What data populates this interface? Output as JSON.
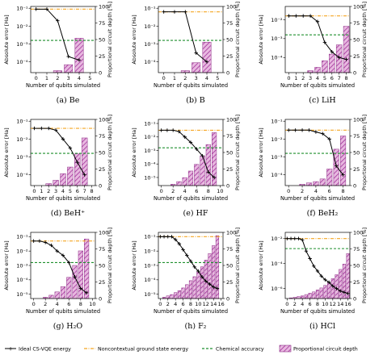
{
  "colors": {
    "ideal": "#000000",
    "noncontextual": "#f5a623",
    "chemical": "#1f8f2e",
    "bar_fill": "#e8b8e0",
    "bar_hatch": "#a0329a",
    "bar_edge": "#8e2f86"
  },
  "legend": {
    "ideal": "Ideal CS-VQE energy",
    "noncontextual": "Noncontextual ground state energy",
    "chemical": "Chemical accuracy",
    "bars": "Proportional circuit depth"
  },
  "chart_data": [
    {
      "type": "line+bar",
      "caption": "(a) Be",
      "xlabel": "Number of qubits simulated",
      "ylabel_left": "Absolute error [Ha]",
      "ylabel_right": "Proportional circuit depth [%]",
      "xlim": [
        -0.5,
        5.5
      ],
      "xticks": [
        0,
        1,
        2,
        3,
        4,
        5
      ],
      "ylog": true,
      "ylim_exp": [
        -4.6,
        -0.9
      ],
      "yticks_exp": [
        -1,
        -2,
        -3,
        -4
      ],
      "y2lim": [
        0,
        100
      ],
      "y2ticks": [
        0,
        25,
        50,
        75,
        100
      ],
      "noncontextual_exp": -1.05,
      "chemical_exp": -2.8,
      "ideal": {
        "x": [
          0,
          1,
          2,
          3,
          4
        ],
        "exp": [
          -1.05,
          -1.05,
          -1.7,
          -3.7,
          -3.9
        ]
      },
      "bars": {
        "x": [
          0,
          1,
          2,
          3,
          4
        ],
        "values": [
          0,
          0,
          3,
          12,
          52
        ]
      }
    },
    {
      "type": "line+bar",
      "caption": "(b) B",
      "xlabel": "Number of qubits simulated",
      "ylabel_left": "Absolute error [Ha]",
      "ylabel_right": "Proportional circuit depth [%]",
      "xlim": [
        -0.5,
        5.5
      ],
      "xticks": [
        0,
        1,
        2,
        3,
        4,
        5
      ],
      "ylog": true,
      "ylim_exp": [
        -4.6,
        -0.9
      ],
      "yticks_exp": [
        -1,
        -2,
        -3,
        -4
      ],
      "y2lim": [
        0,
        100
      ],
      "y2ticks": [
        0,
        25,
        50,
        75,
        100
      ],
      "noncontextual_exp": -1.2,
      "chemical_exp": -2.8,
      "ideal": {
        "x": [
          0,
          1,
          2,
          3,
          4
        ],
        "exp": [
          -1.2,
          -1.2,
          -1.2,
          -3.5,
          -4.0
        ]
      },
      "bars": {
        "x": [
          0,
          1,
          2,
          3,
          4
        ],
        "values": [
          0,
          0,
          3,
          15,
          46
        ]
      }
    },
    {
      "type": "line+bar",
      "caption": "(c) LiH",
      "xlabel": "Number of qubits simulated",
      "ylabel_left": "Absolute error [Ha]",
      "ylabel_right": "Proportional circuit depth [%]",
      "xlim": [
        -0.5,
        8.5
      ],
      "xticks": [
        0,
        1,
        2,
        3,
        4,
        5,
        6,
        7,
        8
      ],
      "ylog": true,
      "ylim_exp": [
        -4.8,
        -1.3
      ],
      "yticks_exp": [
        -2,
        -3,
        -4
      ],
      "y2lim": [
        0,
        100
      ],
      "y2ticks": [
        0,
        25,
        50,
        75,
        100
      ],
      "noncontextual_exp": -1.8,
      "chemical_exp": -2.8,
      "ideal": {
        "x": [
          0,
          1,
          2,
          3,
          4,
          5,
          6,
          7,
          8
        ],
        "exp": [
          -1.8,
          -1.8,
          -1.8,
          -1.8,
          -2.1,
          -3.2,
          -3.7,
          -4.0,
          -4.1
        ]
      },
      "bars": {
        "x": [
          0,
          1,
          2,
          3,
          4,
          5,
          6,
          7,
          8
        ],
        "values": [
          0,
          0,
          0,
          3,
          8,
          18,
          28,
          42,
          70
        ]
      }
    },
    {
      "type": "line+bar",
      "caption": "(d) BeH⁺",
      "xlabel": "Number of qubits simulated",
      "ylabel_left": "Absolute error [Ha]",
      "ylabel_right": "Proportional circuit depth [%]",
      "xlim": [
        -0.5,
        8.5
      ],
      "xticks": [
        0,
        1,
        2,
        3,
        4,
        5,
        6,
        7,
        8
      ],
      "ylog": true,
      "ylim_exp": [
        -4.6,
        -0.9
      ],
      "yticks_exp": [
        -1,
        -2,
        -3,
        -4
      ],
      "y2lim": [
        0,
        100
      ],
      "y2ticks": [
        0,
        25,
        50,
        75,
        100
      ],
      "noncontextual_exp": -1.4,
      "chemical_exp": -2.8,
      "ideal": {
        "x": [
          0,
          1,
          2,
          3,
          4,
          5,
          6,
          7
        ],
        "exp": [
          -1.4,
          -1.4,
          -1.4,
          -1.5,
          -2.0,
          -2.5,
          -3.3,
          -4.0
        ]
      },
      "bars": {
        "x": [
          0,
          1,
          2,
          3,
          4,
          5,
          6,
          7
        ],
        "values": [
          0,
          0,
          3,
          8,
          18,
          28,
          48,
          72
        ]
      }
    },
    {
      "type": "line+bar",
      "caption": "(e) HF",
      "xlabel": "Number of qubits simulated",
      "ylabel_left": "Absolute error [Ha]",
      "ylabel_right": "Proportional circuit depth [%]",
      "xlim": [
        -0.5,
        10.5
      ],
      "xticks": [
        0,
        2,
        4,
        6,
        8,
        10
      ],
      "ylog": true,
      "ylim_exp": [
        -5.6,
        -0.7
      ],
      "yticks_exp": [
        -1,
        -2,
        -3,
        -4,
        -5
      ],
      "y2lim": [
        0,
        100
      ],
      "y2ticks": [
        0,
        25,
        50,
        75,
        100
      ],
      "noncontextual_exp": -1.5,
      "chemical_exp": -2.8,
      "ideal": {
        "x": [
          0,
          1,
          2,
          3,
          4,
          5,
          6,
          7,
          8,
          9
        ],
        "exp": [
          -1.5,
          -1.5,
          -1.5,
          -1.6,
          -2.0,
          -2.4,
          -2.9,
          -3.4,
          -4.6,
          -5.0
        ]
      },
      "bars": {
        "x": [
          0,
          1,
          2,
          3,
          4,
          5,
          6,
          7,
          8,
          9
        ],
        "values": [
          0,
          0,
          2,
          6,
          12,
          22,
          32,
          45,
          62,
          80
        ]
      }
    },
    {
      "type": "line+bar",
      "caption": "(f) BeH₂",
      "xlabel": "Number of qubits simulated",
      "ylabel_left": "Absolute error [Ha]",
      "ylabel_right": "Proportional circuit depth [%]",
      "xlim": [
        -0.5,
        9
      ],
      "xticks": [
        0,
        2,
        4,
        6,
        8
      ],
      "ylog": true,
      "ylim_exp": [
        -4.6,
        -0.9
      ],
      "yticks_exp": [
        -1,
        -2,
        -3,
        -4
      ],
      "y2lim": [
        0,
        100
      ],
      "y2ticks": [
        0,
        25,
        50,
        75,
        100
      ],
      "noncontextual_exp": -1.5,
      "chemical_exp": -2.8,
      "ideal": {
        "x": [
          0,
          1,
          2,
          3,
          4,
          5,
          6,
          7,
          8
        ],
        "exp": [
          -1.5,
          -1.5,
          -1.5,
          -1.5,
          -1.6,
          -1.7,
          -2.0,
          -3.5,
          -4.0
        ]
      },
      "bars": {
        "x": [
          0,
          1,
          2,
          3,
          4,
          5,
          6,
          7,
          8
        ],
        "values": [
          0,
          0,
          2,
          4,
          6,
          10,
          25,
          55,
          75
        ]
      }
    },
    {
      "type": "line+bar",
      "caption": "(g) H₂O",
      "xlabel": "Number of qubits simulated",
      "ylabel_left": "Absolute error [Ha]",
      "ylabel_right": "Proportional circuit depth [%]",
      "xlim": [
        -0.5,
        10.5
      ],
      "xticks": [
        0,
        2,
        4,
        6,
        8,
        10
      ],
      "ylog": true,
      "ylim_exp": [
        -5.3,
        -0.7
      ],
      "yticks_exp": [
        -1,
        -2,
        -3,
        -4,
        -5
      ],
      "y2lim": [
        0,
        100
      ],
      "y2ticks": [
        0,
        25,
        50,
        75,
        100
      ],
      "noncontextual_exp": -1.3,
      "chemical_exp": -2.8,
      "ideal": {
        "x": [
          0,
          1,
          2,
          3,
          4,
          5,
          6,
          7,
          8,
          9
        ],
        "exp": [
          -1.3,
          -1.3,
          -1.4,
          -1.6,
          -2.0,
          -2.3,
          -2.8,
          -3.8,
          -4.6,
          -4.9
        ]
      },
      "bars": {
        "x": [
          0,
          1,
          2,
          3,
          4,
          5,
          6,
          7,
          8,
          9
        ],
        "values": [
          0,
          0,
          2,
          5,
          10,
          18,
          32,
          50,
          72,
          90
        ]
      }
    },
    {
      "type": "line+bar",
      "caption": "(h) F₂",
      "xlabel": "Number of qubits simulated",
      "ylabel_left": "Absolute error [Ha]",
      "ylabel_right": "Proportional circuit depth [%]",
      "xlim": [
        -0.5,
        16.5
      ],
      "xticks": [
        0,
        2,
        4,
        6,
        8,
        10,
        12,
        14,
        16
      ],
      "ylog": true,
      "ylim_exp": [
        -5.3,
        -0.7
      ],
      "yticks_exp": [
        -1,
        -2,
        -3,
        -4,
        -5
      ],
      "y2lim": [
        0,
        100
      ],
      "y2ticks": [
        0,
        25,
        50,
        75,
        100
      ],
      "noncontextual_exp": -1.0,
      "chemical_exp": -2.8,
      "ideal": {
        "x": [
          0,
          1,
          2,
          3,
          4,
          5,
          6,
          7,
          8,
          9,
          10,
          11,
          12,
          13,
          14,
          15
        ],
        "exp": [
          -1.0,
          -1.0,
          -1.0,
          -1.0,
          -1.2,
          -1.5,
          -1.9,
          -2.3,
          -2.7,
          -3.1,
          -3.4,
          -3.8,
          -4.1,
          -4.3,
          -4.5,
          -4.6
        ]
      },
      "bars": {
        "x": [
          1,
          2,
          3,
          4,
          5,
          6,
          7,
          8,
          9,
          10,
          11,
          12,
          13,
          14,
          15
        ],
        "values": [
          2,
          4,
          6,
          9,
          12,
          16,
          21,
          27,
          33,
          40,
          48,
          58,
          68,
          80,
          95
        ]
      }
    },
    {
      "type": "line+bar",
      "caption": "(i) HCl",
      "xlabel": "Number of qubits simulated",
      "ylabel_left": "Absolute error [Ha]",
      "ylabel_right": "Proportional circuit depth [%]",
      "xlim": [
        -0.5,
        16.5
      ],
      "xticks": [
        0,
        2,
        4,
        6,
        8,
        10,
        12,
        14,
        16
      ],
      "ylog": true,
      "ylim_exp": [
        -6.8,
        -1.5
      ],
      "yticks_exp": [
        -2,
        -4,
        -6
      ],
      "y2lim": [
        0,
        100
      ],
      "y2ticks": [
        0,
        25,
        50,
        75,
        100
      ],
      "noncontextual_exp": -2.0,
      "chemical_exp": -2.8,
      "ideal": {
        "x": [
          0,
          1,
          2,
          3,
          4,
          5,
          6,
          7,
          8,
          9,
          10,
          11,
          12,
          13,
          14,
          15,
          16
        ],
        "exp": [
          -2.0,
          -2.0,
          -2.0,
          -2.0,
          -2.1,
          -3.0,
          -3.6,
          -4.2,
          -4.6,
          -5.0,
          -5.3,
          -5.5,
          -5.8,
          -6.0,
          -6.2,
          -6.3,
          -6.4
        ]
      },
      "bars": {
        "x": [
          1,
          2,
          3,
          4,
          5,
          6,
          7,
          8,
          9,
          10,
          11,
          12,
          13,
          14,
          15,
          16
        ],
        "values": [
          1,
          2,
          3,
          4,
          6,
          8,
          10,
          13,
          16,
          20,
          24,
          30,
          36,
          44,
          52,
          68
        ]
      }
    }
  ]
}
